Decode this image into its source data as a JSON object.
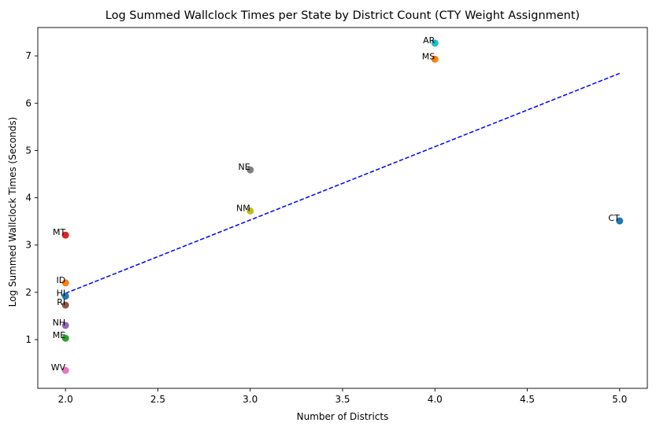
{
  "chart_data": {
    "type": "scatter",
    "title": "Log Summed Wallclock Times per State by District Count (CTY Weight Assignment)",
    "xlabel": "Number of Districts",
    "ylabel": "Log Summed Wallclock Times (Seconds)",
    "xlim": [
      1.85,
      5.15
    ],
    "ylim": [
      -0.03,
      7.6
    ],
    "xticks": [
      2.0,
      2.5,
      3.0,
      3.5,
      4.0,
      4.5,
      5.0
    ],
    "xtick_labels": [
      "2.0",
      "2.5",
      "3.0",
      "3.5",
      "4.0",
      "4.5",
      "5.0"
    ],
    "yticks": [
      1,
      2,
      3,
      4,
      5,
      6,
      7
    ],
    "ytick_labels": [
      "1",
      "2",
      "3",
      "4",
      "5",
      "6",
      "7"
    ],
    "grid": false,
    "points": [
      {
        "label": "AR",
        "x": 4,
        "y": 7.27,
        "color": "#17becf"
      },
      {
        "label": "MS",
        "x": 4,
        "y": 6.93,
        "color": "#ff7f0e"
      },
      {
        "label": "NE",
        "x": 3,
        "y": 4.59,
        "color": "#7f7f7f"
      },
      {
        "label": "NM",
        "x": 3,
        "y": 3.72,
        "color": "#bcbd22"
      },
      {
        "label": "CT",
        "x": 5,
        "y": 3.51,
        "color": "#1f77b4"
      },
      {
        "label": "MT",
        "x": 2,
        "y": 3.21,
        "color": "#d62728"
      },
      {
        "label": "ID",
        "x": 2,
        "y": 2.2,
        "color": "#ff7f0e"
      },
      {
        "label": "HI",
        "x": 2,
        "y": 1.92,
        "color": "#1f77b4"
      },
      {
        "label": "RI",
        "x": 2,
        "y": 1.73,
        "color": "#8c564b"
      },
      {
        "label": "NH",
        "x": 2,
        "y": 1.3,
        "color": "#9467bd"
      },
      {
        "label": "ME",
        "x": 2,
        "y": 1.03,
        "color": "#2ca02c"
      },
      {
        "label": "WV",
        "x": 2,
        "y": 0.35,
        "color": "#e377c2"
      }
    ],
    "trendline": {
      "x": [
        2,
        5
      ],
      "y": [
        1.98,
        6.63
      ],
      "color": "#0000ff",
      "style": "dashed"
    }
  }
}
